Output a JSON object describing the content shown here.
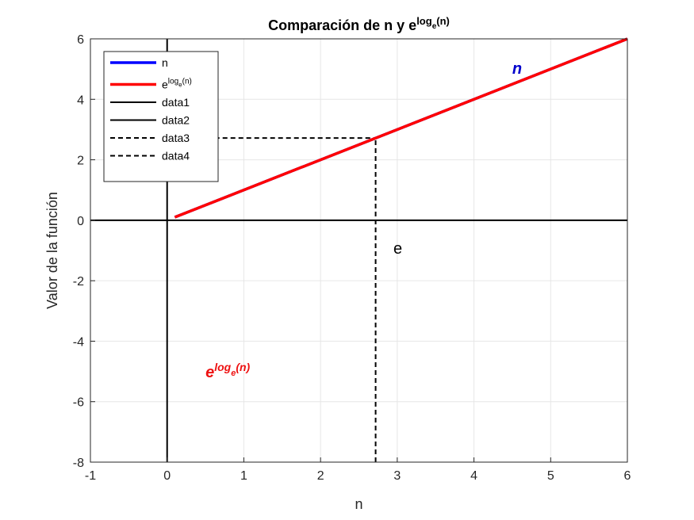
{
  "chart_data": {
    "type": "line",
    "title": {
      "base": "Comparación de n y e",
      "sup": "log",
      "subsup": "e",
      "supend": "(n)"
    },
    "xlabel": "n",
    "ylabel": "Valor de la función",
    "xlim": [
      -1,
      6
    ],
    "ylim": [
      -8,
      6
    ],
    "xticks": [
      "-1",
      "0",
      "1",
      "2",
      "3",
      "4",
      "5",
      "6"
    ],
    "yticks": [
      "-8",
      "-6",
      "-4",
      "-2",
      "0",
      "2",
      "4",
      "6"
    ],
    "grid": true,
    "legend_position": "top-left",
    "series": [
      {
        "name": "n",
        "color": "#0000ff",
        "style": "solid",
        "width": "thick",
        "x": [
          0.1,
          6
        ],
        "y": [
          0.1,
          6
        ]
      },
      {
        "name": {
          "base": "e",
          "sup": "log",
          "subsup": "e",
          "supend": "(n)"
        },
        "color": "#ff0000",
        "style": "solid",
        "width": "thick",
        "x": [
          0.1,
          6
        ],
        "y": [
          0.1,
          6
        ]
      },
      {
        "name": "data1",
        "color": "#000000",
        "style": "solid",
        "width": "thin",
        "x": [
          -1,
          6
        ],
        "y": [
          0,
          0
        ]
      },
      {
        "name": "data2",
        "color": "#000000",
        "style": "solid",
        "width": "thin",
        "x": [
          0,
          0
        ],
        "y": [
          -8,
          6
        ]
      },
      {
        "name": "data3",
        "color": "#000000",
        "style": "dashed",
        "width": "thin",
        "x": [
          2.718,
          2.718
        ],
        "y": [
          -8,
          2.718
        ]
      },
      {
        "name": "data4",
        "color": "#000000",
        "style": "dashed",
        "width": "thin",
        "x": [
          0,
          2.718
        ],
        "y": [
          2.718,
          2.718
        ]
      }
    ],
    "annotations": [
      {
        "text": "n",
        "x": 4.5,
        "y": 4.85,
        "color": "#0000cc",
        "bold": true,
        "italic": true
      },
      {
        "text": "e",
        "x": 2.95,
        "y": -1.1,
        "color": "#000000",
        "bold": false,
        "italic": false
      },
      {
        "text": {
          "base": "e",
          "sup": "log",
          "subsup": "e",
          "supend": "(n)"
        },
        "x": 0.5,
        "y": -5.2,
        "color": "#ee1111",
        "bold": true,
        "italic": true
      }
    ]
  }
}
